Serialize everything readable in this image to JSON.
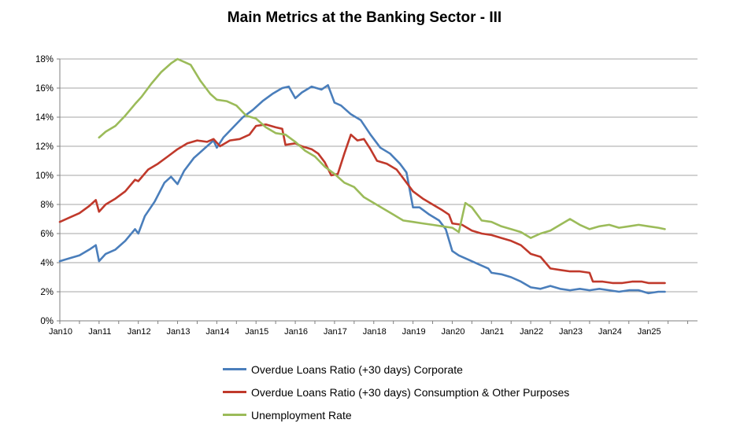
{
  "chart_data": {
    "type": "line",
    "title": "Main Metrics at the Banking Sector - III",
    "xlabel": "",
    "ylabel": "",
    "ylim": [
      0,
      18
    ],
    "y_ticks": [
      "0%",
      "2%",
      "4%",
      "6%",
      "8%",
      "10%",
      "12%",
      "14%",
      "16%",
      "18%"
    ],
    "x_ticks": [
      "Jan10",
      "Jan11",
      "Jan12",
      "Jan13",
      "Jan14",
      "Jan15",
      "Jan16",
      "Jan17",
      "Jan18",
      "Jan19",
      "Jan20",
      "Jan21",
      "Jan22",
      "Jan23",
      "Jan24",
      "Jan25"
    ],
    "x_range": [
      "2010-01",
      "2026-04"
    ],
    "grid": "horizontal",
    "legend_position": "bottom",
    "series": [
      {
        "name": "Overdue Loans Ratio (+30 days) Corporate",
        "color": "#4a7ebb",
        "points": [
          [
            "2010-01",
            4.1
          ],
          [
            "2010-04",
            4.3
          ],
          [
            "2010-07",
            4.5
          ],
          [
            "2010-10",
            4.9
          ],
          [
            "2010-12",
            5.2
          ],
          [
            "2011-01",
            4.1
          ],
          [
            "2011-03",
            4.6
          ],
          [
            "2011-06",
            4.9
          ],
          [
            "2011-09",
            5.5
          ],
          [
            "2011-12",
            6.3
          ],
          [
            "2012-01",
            6.0
          ],
          [
            "2012-03",
            7.2
          ],
          [
            "2012-06",
            8.2
          ],
          [
            "2012-09",
            9.5
          ],
          [
            "2012-11",
            9.9
          ],
          [
            "2013-01",
            9.4
          ],
          [
            "2013-03",
            10.3
          ],
          [
            "2013-06",
            11.2
          ],
          [
            "2013-09",
            11.8
          ],
          [
            "2013-12",
            12.4
          ],
          [
            "2014-01",
            11.9
          ],
          [
            "2014-03",
            12.6
          ],
          [
            "2014-06",
            13.3
          ],
          [
            "2014-09",
            14.0
          ],
          [
            "2014-12",
            14.5
          ],
          [
            "2015-03",
            15.1
          ],
          [
            "2015-06",
            15.6
          ],
          [
            "2015-09",
            16.0
          ],
          [
            "2015-11",
            16.1
          ],
          [
            "2016-01",
            15.3
          ],
          [
            "2016-03",
            15.7
          ],
          [
            "2016-06",
            16.1
          ],
          [
            "2016-09",
            15.9
          ],
          [
            "2016-11",
            16.2
          ],
          [
            "2017-01",
            15.0
          ],
          [
            "2017-03",
            14.8
          ],
          [
            "2017-06",
            14.2
          ],
          [
            "2017-09",
            13.8
          ],
          [
            "2017-12",
            12.8
          ],
          [
            "2018-03",
            11.9
          ],
          [
            "2018-06",
            11.5
          ],
          [
            "2018-09",
            10.8
          ],
          [
            "2018-11",
            10.2
          ],
          [
            "2019-01",
            7.8
          ],
          [
            "2019-03",
            7.8
          ],
          [
            "2019-06",
            7.3
          ],
          [
            "2019-09",
            6.9
          ],
          [
            "2019-11",
            6.3
          ],
          [
            "2020-01",
            4.8
          ],
          [
            "2020-03",
            4.5
          ],
          [
            "2020-06",
            4.2
          ],
          [
            "2020-09",
            3.9
          ],
          [
            "2020-12",
            3.6
          ],
          [
            "2021-01",
            3.3
          ],
          [
            "2021-04",
            3.2
          ],
          [
            "2021-07",
            3.0
          ],
          [
            "2021-10",
            2.7
          ],
          [
            "2022-01",
            2.3
          ],
          [
            "2022-04",
            2.2
          ],
          [
            "2022-07",
            2.4
          ],
          [
            "2022-10",
            2.2
          ],
          [
            "2023-01",
            2.1
          ],
          [
            "2023-04",
            2.2
          ],
          [
            "2023-07",
            2.1
          ],
          [
            "2023-10",
            2.2
          ],
          [
            "2024-01",
            2.1
          ],
          [
            "2024-04",
            2.0
          ],
          [
            "2024-07",
            2.1
          ],
          [
            "2024-10",
            2.1
          ],
          [
            "2025-01",
            1.9
          ],
          [
            "2025-04",
            2.0
          ],
          [
            "2025-06",
            2.0
          ]
        ]
      },
      {
        "name": "Overdue Loans Ratio (+30 days) Consumption & Other Purposes",
        "color": "#c0392b",
        "points": [
          [
            "2010-01",
            6.8
          ],
          [
            "2010-04",
            7.1
          ],
          [
            "2010-07",
            7.4
          ],
          [
            "2010-10",
            7.9
          ],
          [
            "2010-12",
            8.3
          ],
          [
            "2011-01",
            7.5
          ],
          [
            "2011-03",
            8.0
          ],
          [
            "2011-06",
            8.4
          ],
          [
            "2011-09",
            8.9
          ],
          [
            "2011-12",
            9.7
          ],
          [
            "2012-01",
            9.6
          ],
          [
            "2012-04",
            10.4
          ],
          [
            "2012-07",
            10.8
          ],
          [
            "2012-10",
            11.3
          ],
          [
            "2013-01",
            11.8
          ],
          [
            "2013-04",
            12.2
          ],
          [
            "2013-07",
            12.4
          ],
          [
            "2013-10",
            12.3
          ],
          [
            "2013-12",
            12.5
          ],
          [
            "2014-02",
            12.0
          ],
          [
            "2014-05",
            12.4
          ],
          [
            "2014-08",
            12.5
          ],
          [
            "2014-11",
            12.8
          ],
          [
            "2015-01",
            13.4
          ],
          [
            "2015-04",
            13.5
          ],
          [
            "2015-07",
            13.3
          ],
          [
            "2015-09",
            13.2
          ],
          [
            "2015-10",
            12.1
          ],
          [
            "2016-01",
            12.2
          ],
          [
            "2016-03",
            12.0
          ],
          [
            "2016-06",
            11.8
          ],
          [
            "2016-08",
            11.5
          ],
          [
            "2016-10",
            10.9
          ],
          [
            "2016-12",
            10.0
          ],
          [
            "2017-02",
            10.1
          ],
          [
            "2017-04",
            11.5
          ],
          [
            "2017-06",
            12.8
          ],
          [
            "2017-08",
            12.4
          ],
          [
            "2017-10",
            12.5
          ],
          [
            "2017-12",
            11.8
          ],
          [
            "2018-02",
            11.0
          ],
          [
            "2018-05",
            10.8
          ],
          [
            "2018-08",
            10.4
          ],
          [
            "2018-10",
            9.8
          ],
          [
            "2018-12",
            9.2
          ],
          [
            "2019-01",
            8.9
          ],
          [
            "2019-04",
            8.4
          ],
          [
            "2019-07",
            8.0
          ],
          [
            "2019-10",
            7.6
          ],
          [
            "2019-12",
            7.3
          ],
          [
            "2020-01",
            6.7
          ],
          [
            "2020-04",
            6.6
          ],
          [
            "2020-07",
            6.2
          ],
          [
            "2020-10",
            6.0
          ],
          [
            "2021-01",
            5.9
          ],
          [
            "2021-04",
            5.7
          ],
          [
            "2021-07",
            5.5
          ],
          [
            "2021-10",
            5.2
          ],
          [
            "2022-01",
            4.6
          ],
          [
            "2022-04",
            4.4
          ],
          [
            "2022-07",
            3.6
          ],
          [
            "2022-10",
            3.5
          ],
          [
            "2023-01",
            3.4
          ],
          [
            "2023-04",
            3.4
          ],
          [
            "2023-07",
            3.3
          ],
          [
            "2023-08",
            2.7
          ],
          [
            "2023-11",
            2.7
          ],
          [
            "2024-02",
            2.6
          ],
          [
            "2024-05",
            2.6
          ],
          [
            "2024-08",
            2.7
          ],
          [
            "2024-11",
            2.7
          ],
          [
            "2025-01",
            2.6
          ],
          [
            "2025-04",
            2.6
          ],
          [
            "2025-06",
            2.6
          ]
        ]
      },
      {
        "name": "Unemployment Rate",
        "color": "#9bbb59",
        "points": [
          [
            "2011-01",
            12.6
          ],
          [
            "2011-03",
            13.0
          ],
          [
            "2011-06",
            13.4
          ],
          [
            "2011-09",
            14.1
          ],
          [
            "2011-12",
            14.9
          ],
          [
            "2012-02",
            15.4
          ],
          [
            "2012-05",
            16.3
          ],
          [
            "2012-08",
            17.1
          ],
          [
            "2012-11",
            17.7
          ],
          [
            "2013-01",
            18.0
          ],
          [
            "2013-03",
            17.8
          ],
          [
            "2013-05",
            17.6
          ],
          [
            "2013-08",
            16.5
          ],
          [
            "2013-11",
            15.6
          ],
          [
            "2014-01",
            15.2
          ],
          [
            "2014-04",
            15.1
          ],
          [
            "2014-07",
            14.8
          ],
          [
            "2014-10",
            14.1
          ],
          [
            "2015-01",
            13.9
          ],
          [
            "2015-04",
            13.3
          ],
          [
            "2015-07",
            12.9
          ],
          [
            "2015-10",
            12.8
          ],
          [
            "2016-01",
            12.3
          ],
          [
            "2016-04",
            11.7
          ],
          [
            "2016-07",
            11.3
          ],
          [
            "2016-10",
            10.6
          ],
          [
            "2017-01",
            10.1
          ],
          [
            "2017-04",
            9.5
          ],
          [
            "2017-07",
            9.2
          ],
          [
            "2017-10",
            8.5
          ],
          [
            "2018-01",
            8.1
          ],
          [
            "2018-04",
            7.7
          ],
          [
            "2018-07",
            7.3
          ],
          [
            "2018-10",
            6.9
          ],
          [
            "2019-01",
            6.8
          ],
          [
            "2019-04",
            6.7
          ],
          [
            "2019-07",
            6.6
          ],
          [
            "2019-10",
            6.5
          ],
          [
            "2020-01",
            6.4
          ],
          [
            "2020-03",
            6.1
          ],
          [
            "2020-05",
            8.1
          ],
          [
            "2020-07",
            7.8
          ],
          [
            "2020-10",
            6.9
          ],
          [
            "2021-01",
            6.8
          ],
          [
            "2021-04",
            6.5
          ],
          [
            "2021-07",
            6.3
          ],
          [
            "2021-10",
            6.1
          ],
          [
            "2022-01",
            5.7
          ],
          [
            "2022-04",
            6.0
          ],
          [
            "2022-07",
            6.2
          ],
          [
            "2022-10",
            6.6
          ],
          [
            "2023-01",
            7.0
          ],
          [
            "2023-04",
            6.6
          ],
          [
            "2023-07",
            6.3
          ],
          [
            "2023-10",
            6.5
          ],
          [
            "2024-01",
            6.6
          ],
          [
            "2024-04",
            6.4
          ],
          [
            "2024-07",
            6.5
          ],
          [
            "2024-10",
            6.6
          ],
          [
            "2025-01",
            6.5
          ],
          [
            "2025-04",
            6.4
          ],
          [
            "2025-06",
            6.3
          ]
        ]
      }
    ]
  }
}
